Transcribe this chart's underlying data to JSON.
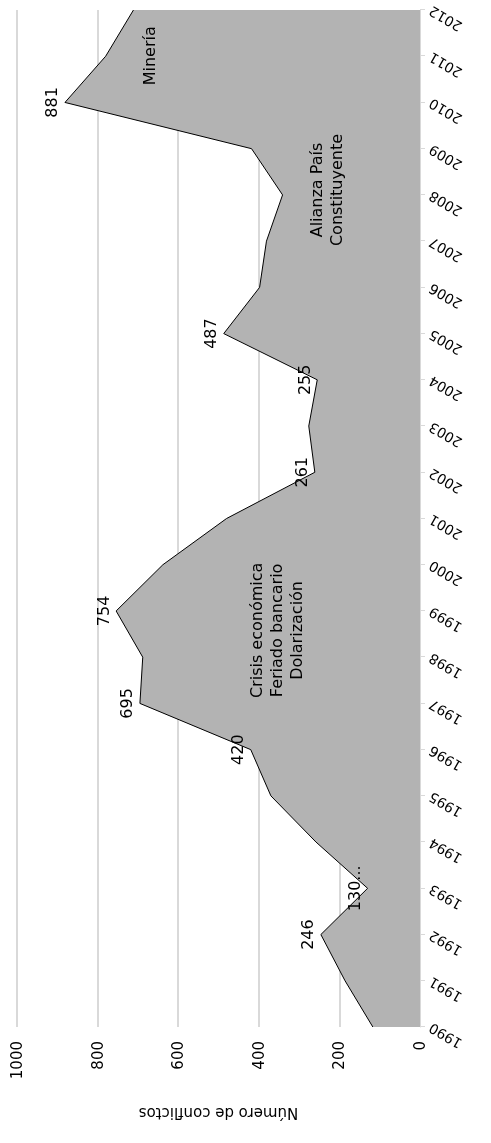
{
  "chart_data": {
    "type": "area",
    "orientation": "horizontal",
    "xlabel": "Número de conflictos",
    "categories": [
      "2012",
      "2011",
      "2010",
      "2009",
      "2008",
      "2007",
      "2006",
      "2005",
      "2004",
      "2003",
      "2002",
      "2001",
      "2000",
      "1999",
      "1998",
      "1997",
      "1996",
      "1995",
      "1994",
      "1993",
      "1992",
      "1991",
      "1990"
    ],
    "values": [
      711,
      780,
      881,
      418,
      341,
      381,
      398,
      487,
      255,
      276,
      261,
      480,
      638,
      754,
      688,
      695,
      420,
      370,
      258,
      130,
      246,
      186,
      117
    ],
    "value_labels": [
      null,
      null,
      "881",
      null,
      null,
      null,
      null,
      "487",
      "255",
      null,
      "261",
      null,
      null,
      "754",
      null,
      "695",
      "420",
      null,
      null,
      "130...",
      "246",
      null,
      null
    ],
    "color": "#b3b3b3",
    "xlim": [
      1000,
      0
    ],
    "xticks": [
      1000,
      800,
      600,
      400,
      200,
      0
    ],
    "grid": "x",
    "annotations": [
      "Crisis económica\nFeriado bancario\nDolarización",
      "Alianza País\nConstituyente",
      "Minería"
    ]
  }
}
